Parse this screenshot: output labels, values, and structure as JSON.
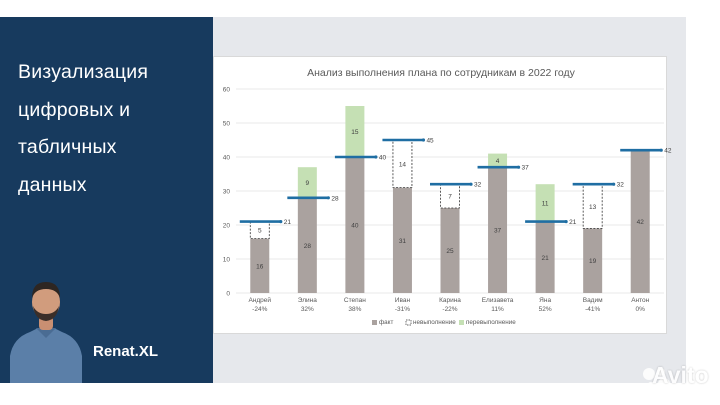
{
  "slide": {
    "title_lines": [
      "Визуализация",
      "цифровых и",
      "табличных",
      "данных"
    ],
    "brand": "Renat.XL",
    "watermark": "Avito"
  },
  "colors": {
    "panel": "#173a5e",
    "fact": "#aaa29f",
    "overfulfill": "#c5e0b4",
    "plan_line": "#1f6ea3",
    "grid": "#e2e2e2",
    "text": "#595959"
  },
  "chart_data": {
    "type": "bar",
    "title": "Анализ выполнения плана по сотрудникам в 2022 году",
    "categories": [
      "Андрей",
      "Элина",
      "Степан",
      "Иван",
      "Карина",
      "Елизавета",
      "Яна",
      "Вадим",
      "Антон"
    ],
    "percent_labels": [
      "-24%",
      "32%",
      "38%",
      "-31%",
      "-22%",
      "11%",
      "52%",
      "-41%",
      "0%"
    ],
    "ylim": [
      0,
      60
    ],
    "yticks": [
      0,
      10,
      20,
      30,
      40,
      50,
      60
    ],
    "series": [
      {
        "name": "факт",
        "values": [
          16,
          28,
          40,
          31,
          25,
          37,
          21,
          19,
          42
        ]
      },
      {
        "name": "невыполнение",
        "values": [
          5,
          0,
          0,
          14,
          7,
          0,
          0,
          13,
          0
        ]
      },
      {
        "name": "перевыполнение",
        "values": [
          0,
          9,
          15,
          0,
          0,
          4,
          11,
          0,
          0
        ]
      }
    ],
    "plan": [
      21,
      28,
      40,
      45,
      32,
      37,
      21,
      32,
      42
    ],
    "plan_labels": [
      "21",
      "28",
      "40",
      "45",
      "32",
      "37",
      "21",
      "32",
      "42"
    ],
    "legend": [
      "факт",
      "невыполнение",
      "перевыполнение"
    ],
    "legend_position": "bottom"
  }
}
